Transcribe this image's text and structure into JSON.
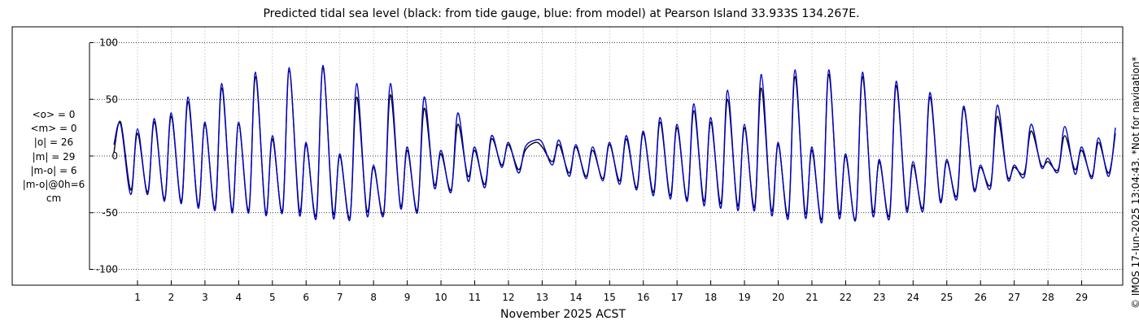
{
  "chart_data": {
    "type": "line",
    "title": "Predicted tidal sea level (black: from tide gauge, blue: from model) at Pearson Island 33.933S 134.267E.",
    "xlabel": "November 2025 ACST",
    "ylabel": "",
    "xlim": [
      0.3,
      30.0
    ],
    "ylim": [
      -105,
      105
    ],
    "x_ticks": [
      1,
      2,
      3,
      4,
      5,
      6,
      7,
      8,
      9,
      10,
      11,
      12,
      13,
      14,
      15,
      16,
      17,
      18,
      19,
      20,
      21,
      22,
      23,
      24,
      25,
      26,
      27,
      28,
      29
    ],
    "y_ticks": [
      -100,
      -50,
      0,
      50,
      100
    ],
    "y_tick_labels": [
      "-100",
      "-50",
      "0",
      "50",
      "100"
    ],
    "grid": {
      "x": true,
      "y": true
    },
    "series": [
      {
        "color": "#000000",
        "stroke_width": 1.4,
        "x": [
          0.3,
          0.5,
          0.8,
          1.0,
          1.3,
          1.5,
          1.8,
          2.0,
          2.3,
          2.5,
          2.8,
          3.0,
          3.3,
          3.5,
          3.8,
          4.0,
          4.3,
          4.5,
          4.8,
          5.0,
          5.3,
          5.5,
          5.8,
          6.0,
          6.3,
          6.5,
          6.8,
          7.0,
          7.3,
          7.5,
          7.8,
          8.0,
          8.3,
          8.5,
          8.8,
          9.0,
          9.3,
          9.5,
          9.8,
          10.0,
          10.3,
          10.5,
          10.8,
          11.0,
          11.3,
          11.5,
          11.8,
          12.0,
          12.3,
          12.5,
          12.8,
          13.0,
          13.3,
          13.5,
          13.8,
          14.0,
          14.3,
          14.5,
          14.8,
          15.0,
          15.3,
          15.5,
          15.8,
          16.0,
          16.3,
          16.5,
          16.8,
          17.0,
          17.3,
          17.5,
          17.8,
          18.0,
          18.3,
          18.5,
          18.8,
          19.0,
          19.3,
          19.5,
          19.8,
          20.0,
          20.3,
          20.5,
          20.8,
          21.0,
          21.3,
          21.5,
          21.8,
          22.0,
          22.3,
          22.5,
          22.8,
          23.0,
          23.3,
          23.5,
          23.8,
          24.0,
          24.3,
          24.5,
          24.8,
          25.0,
          25.3,
          25.5,
          25.8,
          26.0,
          26.3,
          26.5,
          26.8,
          27.0,
          27.3,
          27.5,
          27.8,
          28.0,
          28.3,
          28.5,
          28.8,
          29.0,
          29.3,
          29.5,
          29.8,
          30.0
        ],
        "y": [
          3,
          30,
          -30,
          20,
          -32,
          30,
          -38,
          35,
          -40,
          48,
          -44,
          28,
          -46,
          60,
          -48,
          28,
          -48,
          70,
          -50,
          15,
          -48,
          75,
          -48,
          10,
          -52,
          78,
          -50,
          0,
          -54,
          52,
          -48,
          -10,
          -50,
          54,
          -44,
          5,
          -48,
          42,
          -25,
          2,
          -30,
          28,
          -18,
          5,
          -25,
          15,
          -8,
          10,
          -12,
          5,
          12,
          8,
          -5,
          10,
          -15,
          8,
          -18,
          5,
          -20,
          10,
          -22,
          15,
          -28,
          20,
          -32,
          30,
          -35,
          25,
          -38,
          40,
          -40,
          30,
          -42,
          50,
          -44,
          25,
          -45,
          60,
          -48,
          10,
          -52,
          70,
          -50,
          5,
          -55,
          72,
          -50,
          0,
          -55,
          70,
          -48,
          -5,
          -52,
          62,
          -45,
          -8,
          -45,
          52,
          -38,
          -5,
          -35,
          42,
          -28,
          -10,
          -25,
          35,
          -18,
          -10,
          -15,
          22,
          -8,
          -5,
          -12,
          18,
          -12,
          5,
          -18,
          12,
          -15,
          20
        ]
      },
      {
        "color": "#0000cc",
        "stroke_width": 1.4,
        "x": [
          0.3,
          0.5,
          0.8,
          1.0,
          1.3,
          1.5,
          1.8,
          2.0,
          2.3,
          2.5,
          2.8,
          3.0,
          3.3,
          3.5,
          3.8,
          4.0,
          4.3,
          4.5,
          4.8,
          5.0,
          5.3,
          5.5,
          5.8,
          6.0,
          6.3,
          6.5,
          6.8,
          7.0,
          7.3,
          7.5,
          7.8,
          8.0,
          8.3,
          8.5,
          8.8,
          9.0,
          9.3,
          9.5,
          9.8,
          10.0,
          10.3,
          10.5,
          10.8,
          11.0,
          11.3,
          11.5,
          11.8,
          12.0,
          12.3,
          12.5,
          12.8,
          13.0,
          13.3,
          13.5,
          13.8,
          14.0,
          14.3,
          14.5,
          14.8,
          15.0,
          15.3,
          15.5,
          15.8,
          16.0,
          16.3,
          16.5,
          16.8,
          17.0,
          17.3,
          17.5,
          17.8,
          18.0,
          18.3,
          18.5,
          18.8,
          19.0,
          19.3,
          19.5,
          19.8,
          20.0,
          20.3,
          20.5,
          20.8,
          21.0,
          21.3,
          21.5,
          21.8,
          22.0,
          22.3,
          22.5,
          22.8,
          23.0,
          23.3,
          23.5,
          23.8,
          24.0,
          24.3,
          24.5,
          24.8,
          25.0,
          25.3,
          25.5,
          25.8,
          26.0,
          26.3,
          26.5,
          26.8,
          27.0,
          27.3,
          27.5,
          27.8,
          28.0,
          28.3,
          28.5,
          28.8,
          29.0,
          29.3,
          29.5,
          29.8,
          30.0
        ],
        "y": [
          10,
          28,
          -34,
          24,
          -34,
          33,
          -40,
          38,
          -42,
          52,
          -46,
          30,
          -48,
          64,
          -50,
          30,
          -50,
          74,
          -52,
          18,
          -50,
          78,
          -52,
          12,
          -55,
          80,
          -54,
          2,
          -56,
          64,
          -52,
          -8,
          -52,
          64,
          -46,
          8,
          -50,
          52,
          -28,
          5,
          -32,
          38,
          -22,
          8,
          -28,
          18,
          -10,
          12,
          -15,
          8,
          14,
          12,
          -8,
          14,
          -18,
          10,
          -20,
          8,
          -22,
          12,
          -25,
          18,
          -30,
          22,
          -35,
          34,
          -38,
          28,
          -40,
          46,
          -44,
          34,
          -46,
          58,
          -48,
          28,
          -48,
          72,
          -52,
          12,
          -55,
          76,
          -54,
          8,
          -58,
          76,
          -54,
          2,
          -56,
          74,
          -52,
          -3,
          -55,
          66,
          -48,
          -5,
          -48,
          56,
          -40,
          -3,
          -38,
          44,
          -30,
          -8,
          -28,
          45,
          -20,
          -8,
          -18,
          28,
          -10,
          -2,
          -14,
          26,
          -16,
          8,
          -20,
          16,
          -18,
          25
        ]
      }
    ],
    "left_annotation": [
      "<o> = 0",
      "<m> = 0",
      "|o| = 26",
      "|m| = 29",
      "|m-o| = 6",
      "|m-o|@0h=6",
      "cm"
    ]
  },
  "copyright": "© IMOS 17-Jun-2025 13:04:43. *Not for navigation*"
}
